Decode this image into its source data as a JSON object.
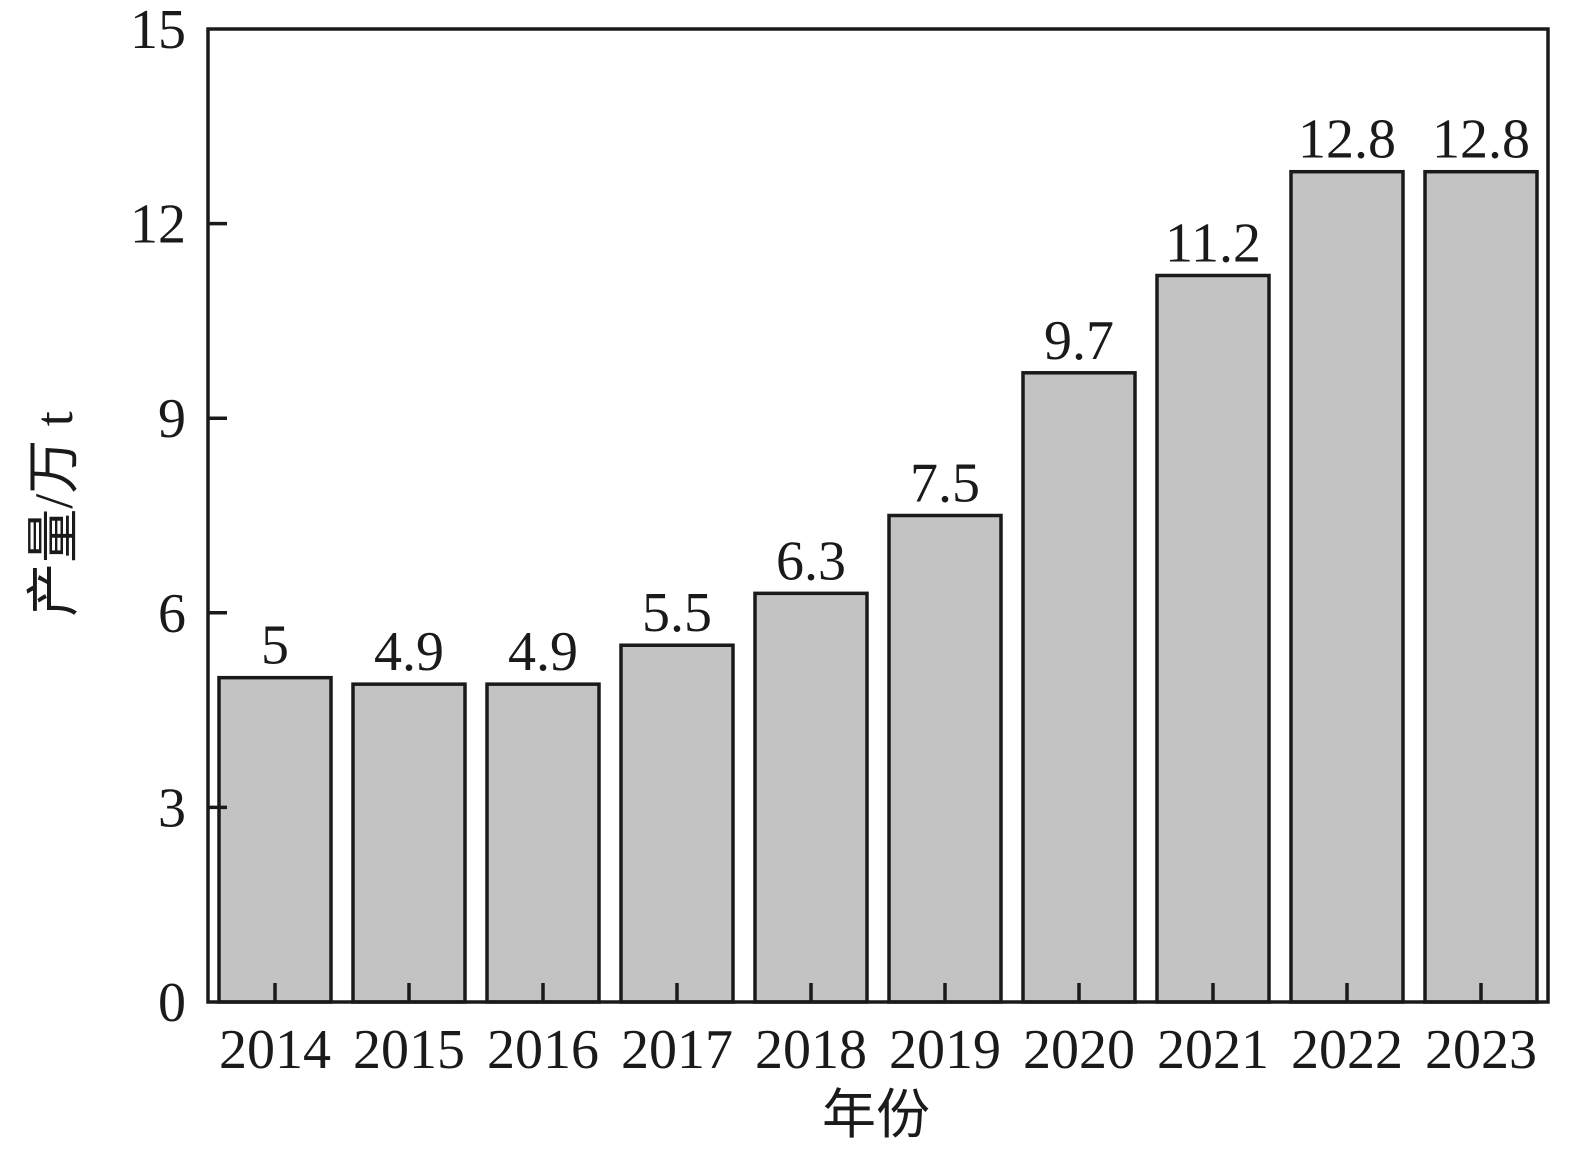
{
  "figure": {
    "background": "#ffffff"
  },
  "chart_data": {
    "type": "bar",
    "title": "",
    "xlabel": "年份",
    "ylabel": "产量/万 t",
    "categories": [
      "2014",
      "2015",
      "2016",
      "2017",
      "2018",
      "2019",
      "2020",
      "2021",
      "2022",
      "2023"
    ],
    "values": [
      5,
      4.9,
      4.9,
      5.5,
      6.3,
      7.5,
      9.7,
      11.2,
      12.8,
      12.8
    ],
    "value_labels": [
      "5",
      "4.9",
      "4.9",
      "5.5",
      "6.3",
      "7.5",
      "9.7",
      "11.2",
      "12.8",
      "12.8"
    ],
    "ylim": [
      0,
      15
    ],
    "yticks": [
      0,
      3,
      6,
      9,
      12,
      15
    ],
    "ytick_labels": [
      "0",
      "3",
      "6",
      "9",
      "12",
      "15"
    ],
    "grid": false,
    "legend": null,
    "colors": {
      "bar_fill": "#c3c3c3",
      "bar_edge": "#1a1a1a",
      "axis": "#1a1a1a",
      "text": "#1a1a1a"
    }
  }
}
